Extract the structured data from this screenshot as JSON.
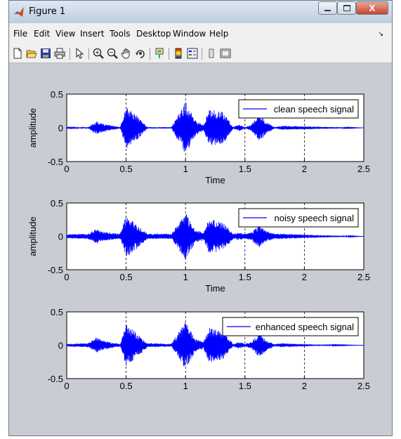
{
  "window": {
    "title": "Figure 1",
    "close_label": "X"
  },
  "menu": [
    "File",
    "Edit",
    "View",
    "Insert",
    "Tools",
    "Desktop",
    "Window",
    "Help"
  ],
  "toolbar": [
    "new-figure-icon",
    "open-file-icon",
    "save-icon",
    "print-icon",
    "pointer-icon",
    "zoom-in-icon",
    "zoom-out-icon",
    "pan-icon",
    "rotate-3d-icon",
    "data-cursor-icon",
    "colorbar-icon",
    "legend-icon",
    "hide-plot-tools-icon",
    "show-plot-tools-icon"
  ],
  "colors": {
    "signal": "#0000ff",
    "axes_bg": "#ffffff",
    "figure_bg": "#c9ccd3"
  },
  "chart_data": [
    {
      "type": "line",
      "title": "",
      "xlabel": "Time",
      "ylabel": "amplitude",
      "xlim": [
        0,
        2.5
      ],
      "ylim": [
        -0.5,
        0.5
      ],
      "xticks": [
        "0",
        "0.5",
        "1",
        "1.5",
        "2",
        "2.5"
      ],
      "yticks": [
        "0.5",
        "0",
        "-0.5"
      ],
      "grid": "x-dashed",
      "legend": {
        "placement": "top-right",
        "entries": [
          "clean speech signal"
        ]
      },
      "series": [
        {
          "name": "clean speech signal",
          "x": [
            0,
            0.18,
            0.25,
            0.3,
            0.45,
            0.5,
            0.58,
            0.68,
            0.75,
            0.88,
            1.0,
            1.08,
            1.15,
            1.2,
            1.32,
            1.4,
            1.45,
            1.5,
            1.55,
            1.62,
            1.68,
            1.75,
            1.82,
            2.5
          ],
          "amplitude": [
            0.005,
            0.01,
            0.1,
            0.06,
            0.01,
            0.31,
            0.2,
            0.01,
            0.01,
            0.01,
            0.4,
            0.12,
            0.04,
            0.27,
            0.24,
            0.01,
            0.05,
            0.01,
            0.04,
            0.2,
            0.09,
            0.01,
            0.03,
            0.0
          ]
        }
      ]
    },
    {
      "type": "line",
      "title": "",
      "xlabel": "Time",
      "ylabel": "amplitude",
      "xlim": [
        0,
        2.5
      ],
      "ylim": [
        -0.5,
        0.5
      ],
      "xticks": [
        "0",
        "0.5",
        "1",
        "1.5",
        "2",
        "2.5"
      ],
      "yticks": [
        "0.5",
        "0",
        "-0.5"
      ],
      "grid": "x-dashed",
      "legend": {
        "placement": "top-right",
        "entries": [
          "noisy speech signal"
        ]
      },
      "series": [
        {
          "name": "noisy speech signal",
          "x": [
            0,
            0.18,
            0.25,
            0.3,
            0.45,
            0.5,
            0.58,
            0.68,
            0.75,
            0.88,
            1.0,
            1.08,
            1.15,
            1.2,
            1.32,
            1.4,
            1.45,
            1.5,
            1.55,
            1.62,
            1.68,
            1.75,
            1.82,
            2.1,
            2.5
          ],
          "amplitude": [
            0.03,
            0.04,
            0.12,
            0.07,
            0.04,
            0.32,
            0.2,
            0.04,
            0.04,
            0.04,
            0.36,
            0.1,
            0.06,
            0.27,
            0.2,
            0.04,
            0.06,
            0.04,
            0.06,
            0.17,
            0.08,
            0.04,
            0.04,
            0.02,
            0.0
          ]
        }
      ]
    },
    {
      "type": "line",
      "title": "",
      "xlabel": "",
      "ylabel": "",
      "xlim": [
        0,
        2.5
      ],
      "ylim": [
        -0.5,
        0.5
      ],
      "xticks": [
        "0",
        "0.5",
        "1",
        "1.5",
        "2",
        "2.5"
      ],
      "yticks": [
        "0.5",
        "0",
        "-0.5"
      ],
      "grid": "x-dashed",
      "legend": {
        "placement": "top-right",
        "entries": [
          "enhanced speech signal"
        ]
      },
      "series": [
        {
          "name": "enhanced speech signal",
          "x": [
            0,
            0.18,
            0.25,
            0.3,
            0.45,
            0.5,
            0.58,
            0.68,
            0.75,
            0.88,
            1.0,
            1.08,
            1.15,
            1.2,
            1.32,
            1.4,
            1.45,
            1.5,
            1.55,
            1.62,
            1.68,
            1.75,
            1.82,
            2.1,
            2.5
          ],
          "amplitude": [
            0.02,
            0.03,
            0.12,
            0.07,
            0.02,
            0.32,
            0.2,
            0.03,
            0.03,
            0.02,
            0.36,
            0.1,
            0.05,
            0.27,
            0.2,
            0.02,
            0.05,
            0.02,
            0.05,
            0.18,
            0.08,
            0.02,
            0.03,
            0.01,
            0.0
          ]
        }
      ]
    }
  ]
}
